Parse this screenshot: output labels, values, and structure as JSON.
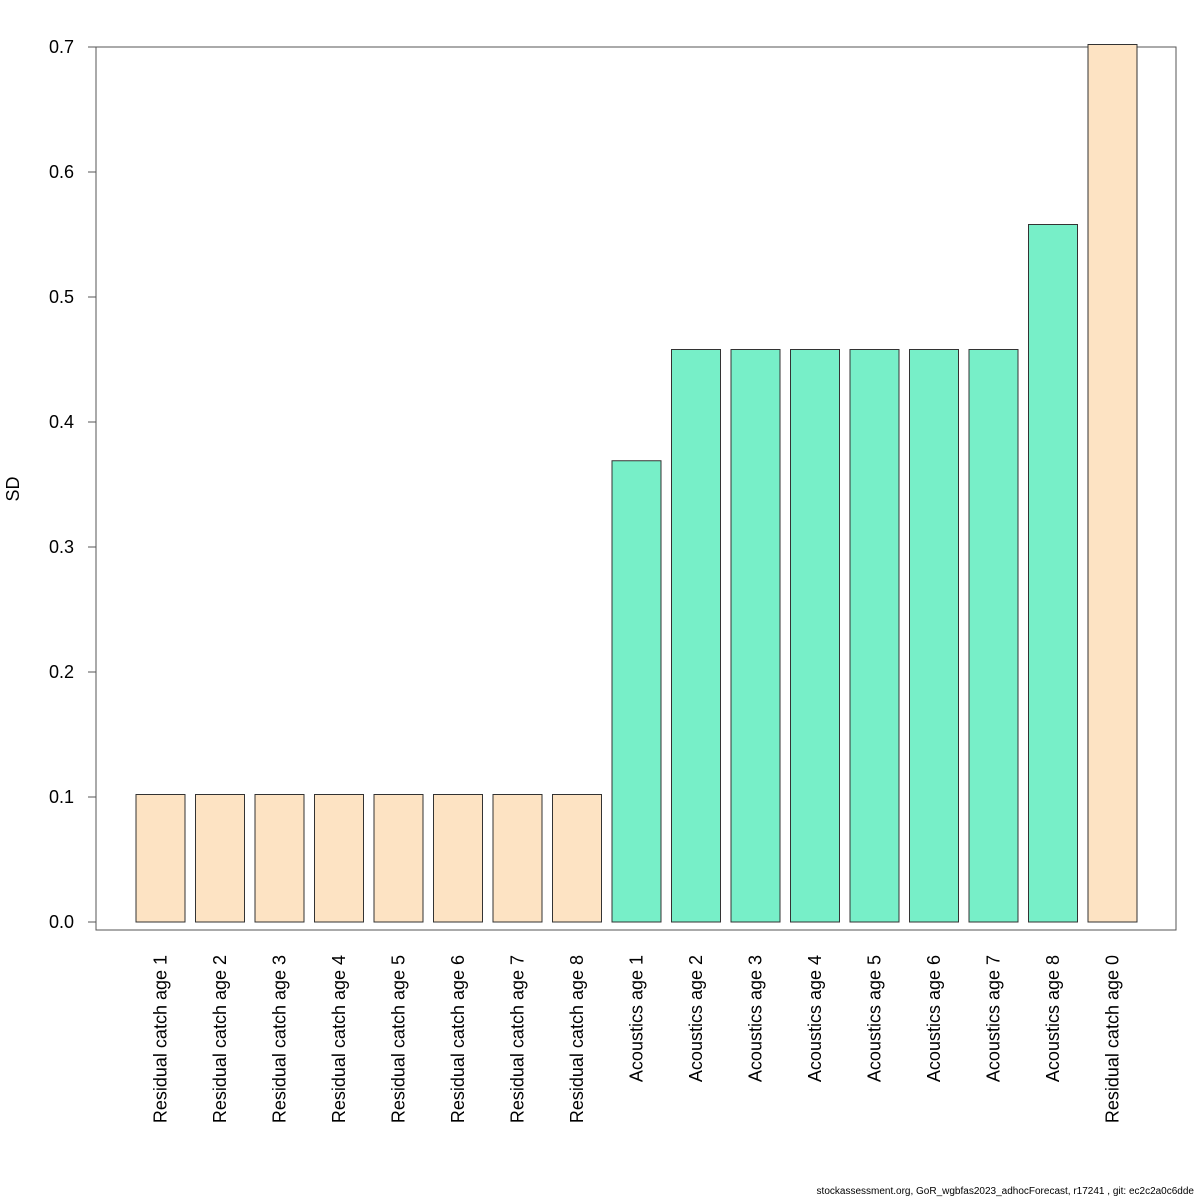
{
  "chart_data": {
    "type": "bar",
    "ylabel": "SD",
    "ylim": [
      0,
      0.7
    ],
    "yticks": [
      "0.0",
      "0.1",
      "0.2",
      "0.3",
      "0.4",
      "0.5",
      "0.6",
      "0.7"
    ],
    "categories": [
      "Residual catch age 1",
      "Residual catch age 2",
      "Residual catch age 3",
      "Residual catch age 4",
      "Residual catch age 5",
      "Residual catch age 6",
      "Residual catch age 7",
      "Residual catch age 8",
      "Acoustics age 1",
      "Acoustics age 2",
      "Acoustics age 3",
      "Acoustics age 4",
      "Acoustics age 5",
      "Acoustics age 6",
      "Acoustics age 7",
      "Acoustics age 8",
      "Residual catch age 0"
    ],
    "values": [
      0.102,
      0.102,
      0.102,
      0.102,
      0.102,
      0.102,
      0.102,
      0.102,
      0.369,
      0.458,
      0.458,
      0.458,
      0.458,
      0.458,
      0.458,
      0.558,
      0.702
    ],
    "groups": [
      "catch",
      "catch",
      "catch",
      "catch",
      "catch",
      "catch",
      "catch",
      "catch",
      "acoustics",
      "acoustics",
      "acoustics",
      "acoustics",
      "acoustics",
      "acoustics",
      "acoustics",
      "acoustics",
      "catch"
    ],
    "colors": {
      "catch": "#FDE3C3",
      "acoustics": "#77EFC8",
      "bar_border": "#333333"
    },
    "grid": false,
    "legend": "none"
  },
  "footer": "stockassessment.org, GoR_wgbfas2023_adhocForecast, r17241 , git: ec2c2a0c6dde"
}
